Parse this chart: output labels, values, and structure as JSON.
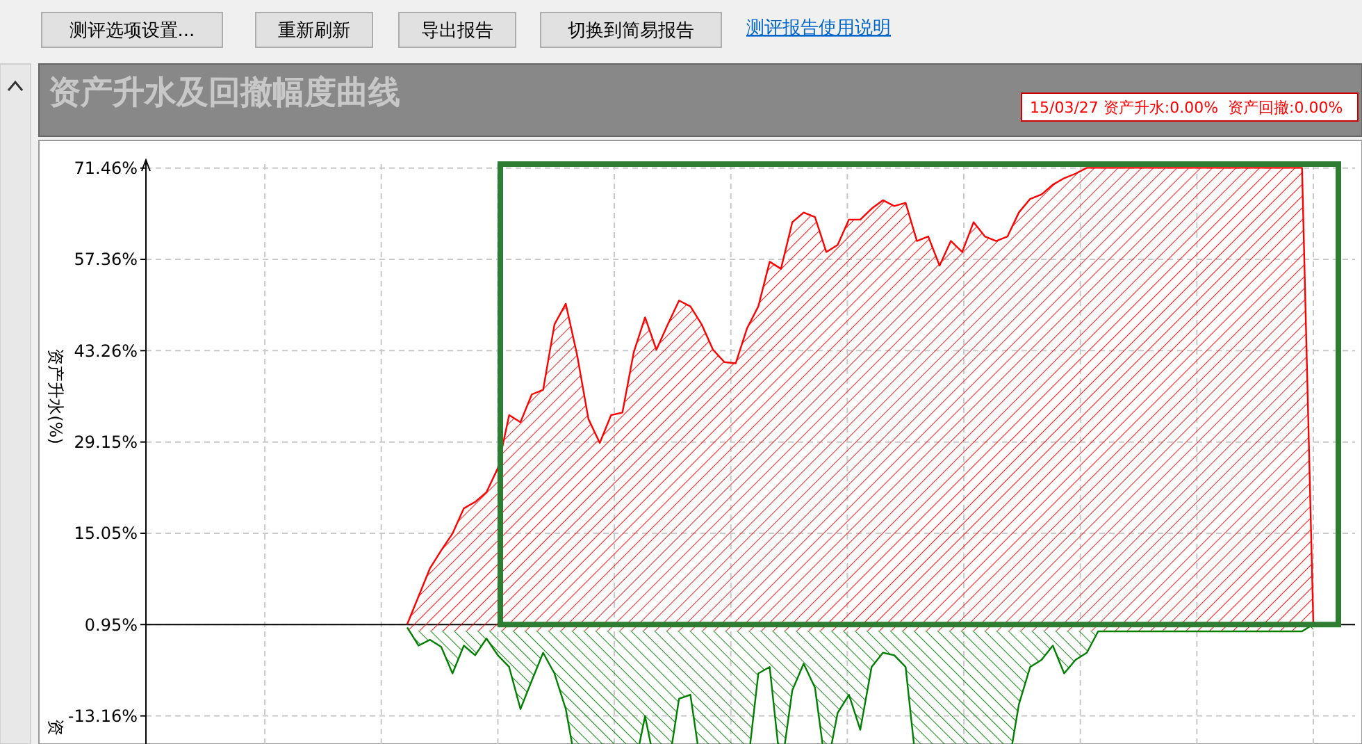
{
  "chart_data": {
    "type": "area",
    "title": "资产升水及回撤幅度曲线",
    "ylabel": "资产升水(%)",
    "annotations": [
      "测评选项设置...",
      "重新刷新",
      "导出报告",
      "切换到简易报告",
      "测评报告使用说明",
      "15/03/27 资产升水:0.00%  资产回撤:0.00%",
      "资"
    ],
    "categories": [
      null,
      null,
      null,
      null,
      null,
      null,
      null,
      null,
      null,
      null,
      null,
      null,
      null,
      null,
      null,
      null,
      null,
      null,
      null,
      null,
      null,
      null,
      null,
      null,
      null,
      null,
      null,
      null,
      null,
      null,
      null,
      null,
      null,
      null,
      null,
      null,
      null,
      null,
      null,
      null,
      null,
      null,
      null,
      null,
      null,
      null,
      null,
      null,
      null,
      null,
      null,
      null,
      null,
      null,
      null,
      null,
      null,
      null,
      null,
      null,
      null,
      null,
      null,
      null,
      null,
      null,
      null,
      null,
      null,
      null,
      null,
      null,
      null,
      null,
      null,
      null,
      null,
      null,
      null,
      null,
      null
    ],
    "series": [
      {
        "color": "#ff0000",
        "values": [
          1.0,
          5.3,
          9.6,
          12.4,
          15.0,
          18.9,
          19.9,
          21.4,
          25.1,
          33.3,
          32.2,
          36.5,
          37.2,
          47.3,
          50.5,
          42.6,
          32.7,
          29.0,
          33.3,
          33.7,
          43.0,
          48.4,
          43.4,
          47.3,
          51.0,
          50.1,
          47.3,
          43.4,
          41.5,
          41.3,
          46.7,
          50.1,
          57.0,
          55.9,
          63.1,
          64.6,
          63.9,
          58.5,
          59.6,
          63.5,
          63.5,
          65.2,
          66.5,
          65.6,
          66.1,
          60.2,
          60.9,
          56.4,
          60.2,
          58.5,
          63.1,
          60.9,
          60.2,
          60.9,
          64.6,
          66.7,
          67.4,
          68.9,
          69.9,
          70.6,
          71.5,
          71.5,
          71.5,
          71.5,
          71.5,
          71.5,
          71.5,
          71.5,
          71.5,
          71.5,
          71.5,
          71.5,
          71.5,
          71.5,
          71.5,
          71.5,
          71.5,
          71.5,
          71.5,
          71.5,
          1.0
        ]
      },
      {
        "color": "#008000",
        "values": [
          0.5,
          -2.3,
          -1.4,
          -2.5,
          -6.6,
          -2.3,
          -3.8,
          -1.2,
          -3.8,
          -5.6,
          -12.1,
          -7.7,
          -3.4,
          -6.6,
          -12.1,
          null,
          null,
          null,
          null,
          null,
          null,
          -13.2,
          null,
          null,
          -10.5,
          -9.9,
          null,
          null,
          null,
          null,
          null,
          -6.6,
          -5.6,
          null,
          -9.2,
          -5.1,
          -8.8,
          null,
          -12.7,
          -9.9,
          -15.3,
          -5.6,
          -3.4,
          -3.8,
          -5.6,
          null,
          null,
          null,
          null,
          null,
          null,
          null,
          null,
          null,
          -11.4,
          -5.6,
          -4.5,
          -2.3,
          -6.6,
          -4.5,
          -3.4,
          -0.1,
          -0.1,
          -0.1,
          -0.1,
          -0.1,
          -0.1,
          -0.1,
          -0.1,
          -0.1,
          -0.1,
          -0.1,
          -0.1,
          -0.1,
          -0.1,
          -0.1,
          -0.1,
          -0.1,
          -0.1,
          -0.1,
          1.0
        ]
      }
    ],
    "ylim": [
      -17.5,
      75.3
    ],
    "yticks": [
      {
        "value": -13.16,
        "label": "-13.16%"
      },
      {
        "value": 0.95,
        "label": "0.95%"
      },
      {
        "value": 15.05,
        "label": "15.05%"
      },
      {
        "value": 29.15,
        "label": "29.15%"
      },
      {
        "value": 43.26,
        "label": "43.26%"
      },
      {
        "value": 57.36,
        "label": "57.36%"
      },
      {
        "value": 71.46,
        "label": "71.46%"
      }
    ],
    "ref_lines": [
      {
        "axis": "y",
        "value": 0.95,
        "color": "#000000"
      }
    ],
    "grid": true
  }
}
